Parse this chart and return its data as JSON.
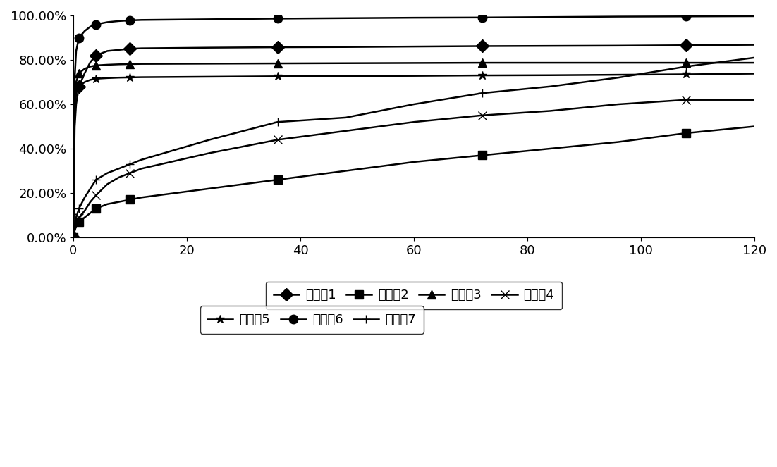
{
  "title": "",
  "xlabel": "",
  "ylabel": "",
  "xlim": [
    0,
    120
  ],
  "ylim": [
    0.0,
    1.0
  ],
  "yticks": [
    0.0,
    0.2,
    0.4,
    0.6,
    0.8,
    1.0
  ],
  "ytick_labels": [
    "0.00%",
    "20.00%",
    "40.00%",
    "60.00%",
    "80.00%",
    "100.00%"
  ],
  "xticks": [
    0,
    20,
    40,
    60,
    80,
    100,
    120
  ],
  "series": [
    {
      "label": "实施例1",
      "marker": "D",
      "color": "#000000",
      "markevery": 3,
      "x": [
        0,
        0.25,
        0.5,
        1,
        2,
        3,
        4,
        6,
        8,
        10,
        12,
        24,
        36,
        48,
        60,
        72,
        84,
        96,
        108,
        120
      ],
      "y": [
        0.0,
        0.5,
        0.6,
        0.68,
        0.74,
        0.79,
        0.82,
        0.84,
        0.845,
        0.85,
        0.852,
        0.855,
        0.857,
        0.858,
        0.86,
        0.862,
        0.863,
        0.864,
        0.866,
        0.868
      ]
    },
    {
      "label": "实施例2",
      "marker": "s",
      "color": "#000000",
      "markevery": 3,
      "x": [
        0,
        0.25,
        0.5,
        1,
        2,
        3,
        4,
        6,
        8,
        10,
        12,
        24,
        36,
        48,
        60,
        72,
        84,
        96,
        108,
        120
      ],
      "y": [
        0.0,
        0.03,
        0.05,
        0.07,
        0.09,
        0.11,
        0.13,
        0.15,
        0.16,
        0.17,
        0.18,
        0.22,
        0.26,
        0.3,
        0.34,
        0.37,
        0.4,
        0.43,
        0.47,
        0.5
      ]
    },
    {
      "label": "实施例3",
      "marker": "^",
      "color": "#000000",
      "markevery": 3,
      "x": [
        0,
        0.25,
        0.5,
        1,
        2,
        3,
        4,
        6,
        8,
        10,
        12,
        24,
        36,
        48,
        60,
        72,
        84,
        96,
        108,
        120
      ],
      "y": [
        0.0,
        0.6,
        0.7,
        0.74,
        0.76,
        0.77,
        0.775,
        0.778,
        0.78,
        0.781,
        0.782,
        0.783,
        0.784,
        0.785,
        0.786,
        0.787,
        0.787,
        0.787,
        0.787,
        0.787
      ]
    },
    {
      "label": "实施例4",
      "marker": "x",
      "color": "#000000",
      "markevery": 3,
      "x": [
        0,
        0.25,
        0.5,
        1,
        2,
        3,
        4,
        6,
        8,
        10,
        12,
        24,
        36,
        48,
        60,
        72,
        84,
        96,
        108,
        120
      ],
      "y": [
        0.0,
        0.04,
        0.06,
        0.09,
        0.12,
        0.16,
        0.19,
        0.24,
        0.27,
        0.29,
        0.31,
        0.38,
        0.44,
        0.48,
        0.52,
        0.55,
        0.57,
        0.6,
        0.62,
        0.62
      ]
    },
    {
      "label": "实施例5",
      "marker": "*",
      "color": "#000000",
      "markevery": 3,
      "x": [
        0,
        0.25,
        0.5,
        1,
        2,
        3,
        4,
        6,
        8,
        10,
        12,
        24,
        36,
        48,
        60,
        72,
        84,
        96,
        108,
        120
      ],
      "y": [
        0.0,
        0.55,
        0.65,
        0.68,
        0.7,
        0.71,
        0.715,
        0.718,
        0.72,
        0.721,
        0.722,
        0.724,
        0.726,
        0.727,
        0.728,
        0.73,
        0.731,
        0.733,
        0.735,
        0.738
      ]
    },
    {
      "label": "实施例6",
      "marker": "o",
      "color": "#000000",
      "markevery": 3,
      "x": [
        0,
        0.25,
        0.5,
        1,
        2,
        3,
        4,
        6,
        8,
        10,
        12,
        24,
        36,
        48,
        60,
        72,
        84,
        96,
        108,
        120
      ],
      "y": [
        0.0,
        0.72,
        0.84,
        0.9,
        0.93,
        0.95,
        0.96,
        0.97,
        0.975,
        0.978,
        0.98,
        0.983,
        0.986,
        0.988,
        0.99,
        0.991,
        0.993,
        0.995,
        0.996,
        0.997
      ]
    },
    {
      "label": "实施例7",
      "marker": "+",
      "color": "#000000",
      "markevery": 3,
      "x": [
        0,
        0.25,
        0.5,
        1,
        2,
        3,
        4,
        6,
        8,
        10,
        12,
        24,
        36,
        48,
        60,
        72,
        84,
        96,
        108,
        120
      ],
      "y": [
        0.0,
        0.06,
        0.09,
        0.13,
        0.18,
        0.22,
        0.26,
        0.29,
        0.31,
        0.33,
        0.35,
        0.44,
        0.52,
        0.54,
        0.6,
        0.65,
        0.68,
        0.72,
        0.77,
        0.81
      ]
    }
  ],
  "background_color": "#ffffff",
  "font_size": 13,
  "marker_size": 9,
  "linewidth": 1.8,
  "legend_rows": [
    [
      0,
      1,
      2,
      3
    ],
    [
      4,
      5,
      6
    ]
  ]
}
